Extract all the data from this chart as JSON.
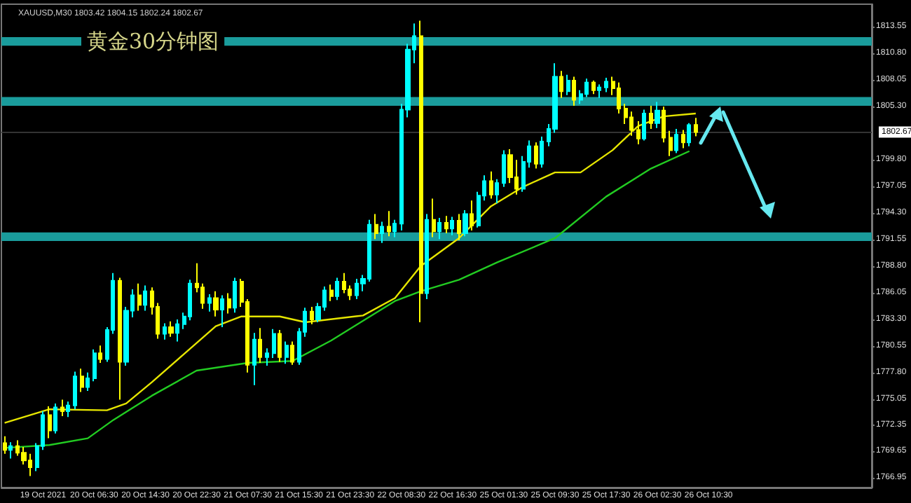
{
  "chart_data": {
    "type": "candlestick",
    "title": "黄金30分钟图",
    "subtitle": "XAUUSD,M30 1803.42 1804.15 1802.24 1802.67",
    "categories": [
      null,
      null,
      null,
      null,
      null,
      null,
      "19 Oct 2021",
      null,
      null,
      null,
      null,
      null,
      null,
      null,
      "20 Oct 06:30",
      null,
      null,
      null,
      null,
      null,
      null,
      null,
      "20 Oct 14:30",
      null,
      null,
      null,
      null,
      null,
      null,
      null,
      "20 Oct 22:30",
      null,
      null,
      null,
      null,
      null,
      null,
      null,
      "21 Oct 07:30",
      null,
      null,
      null,
      null,
      null,
      null,
      null,
      "21 Oct 15:30",
      null,
      null,
      null,
      null,
      null,
      null,
      null,
      "21 Oct 23:30",
      null,
      null,
      null,
      null,
      null,
      null,
      null,
      "22 Oct 08:30",
      null,
      null,
      null,
      null,
      null,
      null,
      null,
      "22 Oct 16:30",
      null,
      null,
      null,
      null,
      null,
      null,
      null,
      "25 Oct 01:30",
      null,
      null,
      null,
      null,
      null,
      null,
      null,
      "25 Oct 09:30",
      null,
      null,
      null,
      null,
      null,
      null,
      null,
      "25 Oct 17:30",
      null,
      null,
      null,
      null,
      null,
      null,
      null,
      "26 Oct 02:30",
      null,
      null,
      null,
      null,
      null,
      null,
      null,
      "26 Oct 10:30",
      null,
      null,
      null,
      null,
      null,
      null,
      null,
      null,
      null,
      null,
      null,
      null,
      null,
      null,
      null,
      null,
      null,
      null,
      null,
      null,
      null,
      null,
      null,
      null,
      null
    ],
    "colors": [
      "#ffff00",
      "#00ffff",
      "#ffff00",
      "#ffff00",
      "#ffff00",
      "#00ffff",
      "#00ffff",
      "#ffff00",
      "#00ffff",
      "#ffff00",
      "#00ffff",
      "#00ffff",
      "#ffff00",
      "#00ffff",
      "#00ffff",
      "#ffff00",
      "#00ffff",
      "#00ffff",
      "#ffff00",
      "#00ffff",
      "#00ffff",
      "#ffff00",
      "#00ffff",
      "#ffff00",
      "#ffff00",
      "#00ffff",
      "#ffff00",
      "#00ffff",
      "#00ffff",
      "#00ffff",
      "#ffff00",
      "#ffff00",
      "#00ffff",
      "#ffff00",
      "#00ffff",
      "#ffff00",
      "#00ffff",
      "#ffff00",
      "#ffff00",
      "#00ffff",
      "#ffff00",
      "#00ffff",
      "#00ffff",
      "#ffff00",
      "#00ffff",
      "#ffff00",
      "#00ffff",
      "#00ffff",
      "#ffff00",
      "#00ffff",
      "#00ffff",
      "#ffff00",
      "#00ffff",
      "#ffff00",
      "#ffff00",
      "#00ffff",
      "#00ffff",
      "#00ffff",
      "#ffff00",
      "#00ffff",
      "#ffff00",
      "#00ffff",
      "#00ffff",
      "#00ffff",
      "#00ffff",
      "#ffff00",
      "#00ffff",
      "#ffff00",
      "#00ffff",
      "#ffff00",
      "#00ffff",
      "#ffff00",
      "#00ffff",
      "#ffff00",
      "#00ffff",
      "#00ffff",
      "#ffff00",
      "#00ffff",
      "#00ffff",
      "#ffff00",
      "#ffff00",
      "#00ffff",
      "#00ffff",
      "#ffff00",
      "#00ffff",
      "#00ffff",
      "#00ffff",
      "#ffff00",
      "#00ffff",
      "#ffff00",
      "#00ffff",
      "#00ffff",
      "#ffff00",
      "#00ffff",
      "#00ffff",
      "#ffff00",
      "#ffff00",
      "#ffff00",
      "#ffff00",
      "#ffff00",
      "#00ffff",
      "#ffff00",
      "#00ffff",
      "#ffff00",
      "#ffff00",
      "#00ffff",
      "#ffff00",
      "#00ffff",
      "#ffff00",
      null,
      null,
      null,
      null,
      null,
      null,
      null,
      null,
      null,
      null,
      null,
      null,
      null,
      null,
      null,
      null,
      null,
      null,
      null,
      null,
      null,
      null,
      null,
      null,
      null,
      null,
      null
    ],
    "ohlc": [
      [
        1770.5,
        1771.2,
        1769.4,
        1769.8
      ],
      [
        1769.8,
        1770.6,
        1768.9,
        1770.2
      ],
      [
        1770.2,
        1770.8,
        1769.2,
        1769.5
      ],
      [
        1769.5,
        1770.1,
        1768.3,
        1768.7
      ],
      [
        1768.7,
        1769.4,
        1767.1,
        1768.0
      ],
      [
        1768.0,
        1770.5,
        1767.6,
        1770.2
      ],
      [
        1770.2,
        1773.8,
        1769.8,
        1773.4
      ],
      [
        1773.4,
        1774.3,
        1771.0,
        1771.8
      ],
      [
        1771.8,
        1774.6,
        1771.5,
        1774.2
      ],
      [
        1774.2,
        1775.0,
        1773.3,
        1773.8
      ],
      [
        1773.8,
        1774.8,
        1773.2,
        1774.4
      ],
      [
        1774.4,
        1777.9,
        1774.0,
        1777.4
      ],
      [
        1777.4,
        1778.2,
        1775.8,
        1776.3
      ],
      [
        1776.3,
        1777.8,
        1775.9,
        1777.2
      ],
      [
        1777.2,
        1780.2,
        1776.9,
        1779.8
      ],
      [
        1779.8,
        1780.6,
        1778.8,
        1779.2
      ],
      [
        1779.2,
        1782.5,
        1778.9,
        1782.2
      ],
      [
        1782.2,
        1788.1,
        1781.8,
        1787.3
      ],
      [
        1787.3,
        1787.6,
        1775.0,
        1778.9
      ],
      [
        1778.9,
        1784.6,
        1778.5,
        1784.2
      ],
      [
        1784.2,
        1786.4,
        1783.5,
        1785.8
      ],
      [
        1785.8,
        1787.0,
        1784.2,
        1784.8
      ],
      [
        1784.8,
        1786.8,
        1784.2,
        1786.2
      ],
      [
        1786.2,
        1786.6,
        1783.8,
        1784.6
      ],
      [
        1784.6,
        1785.0,
        1781.3,
        1781.8
      ],
      [
        1781.8,
        1782.9,
        1781.2,
        1782.5
      ],
      [
        1782.5,
        1783.1,
        1781.5,
        1781.9
      ],
      [
        1781.9,
        1783.3,
        1781.0,
        1782.8
      ],
      [
        1782.8,
        1784.0,
        1782.3,
        1783.6
      ],
      [
        1783.6,
        1787.4,
        1783.2,
        1787.0
      ],
      [
        1787.0,
        1789.1,
        1786.1,
        1786.6
      ],
      [
        1786.6,
        1787.0,
        1784.4,
        1785.0
      ],
      [
        1785.0,
        1785.9,
        1784.1,
        1785.5
      ],
      [
        1785.5,
        1786.2,
        1783.6,
        1784.3
      ],
      [
        1784.3,
        1785.8,
        1782.5,
        1785.4
      ],
      [
        1785.4,
        1786.0,
        1783.9,
        1784.5
      ],
      [
        1784.5,
        1787.6,
        1784.0,
        1787.2
      ],
      [
        1787.2,
        1787.5,
        1784.6,
        1785.1
      ],
      [
        1785.1,
        1785.4,
        1777.8,
        1778.6
      ],
      [
        1778.6,
        1781.9,
        1776.5,
        1781.2
      ],
      [
        1781.2,
        1782.4,
        1778.8,
        1779.4
      ],
      [
        1779.4,
        1780.3,
        1778.5,
        1779.8
      ],
      [
        1779.8,
        1782.3,
        1779.3,
        1781.8
      ],
      [
        1781.8,
        1782.2,
        1778.9,
        1779.4
      ],
      [
        1779.4,
        1781.0,
        1778.7,
        1780.6
      ],
      [
        1780.6,
        1781.0,
        1778.6,
        1778.9
      ],
      [
        1778.9,
        1782.4,
        1778.6,
        1782.0
      ],
      [
        1782.0,
        1784.5,
        1781.5,
        1784.1
      ],
      [
        1784.1,
        1784.6,
        1782.8,
        1783.3
      ],
      [
        1783.3,
        1785.0,
        1783.0,
        1784.6
      ],
      [
        1784.6,
        1786.7,
        1784.2,
        1786.3
      ],
      [
        1786.3,
        1786.9,
        1785.2,
        1785.7
      ],
      [
        1785.7,
        1787.6,
        1785.3,
        1787.2
      ],
      [
        1787.2,
        1788.1,
        1786.0,
        1786.4
      ],
      [
        1786.4,
        1786.8,
        1785.3,
        1785.8
      ],
      [
        1785.8,
        1787.5,
        1785.4,
        1787.0
      ],
      [
        1787.0,
        1787.9,
        1786.2,
        1787.5
      ],
      [
        1787.5,
        1793.6,
        1787.2,
        1793.1
      ],
      [
        1793.1,
        1794.2,
        1791.6,
        1792.2
      ],
      [
        1792.2,
        1793.4,
        1791.2,
        1792.9
      ],
      [
        1792.9,
        1794.5,
        1791.9,
        1792.4
      ],
      [
        1792.4,
        1793.6,
        1791.8,
        1793.2
      ],
      [
        1793.2,
        1805.6,
        1792.5,
        1805.0
      ],
      [
        1805.0,
        1811.8,
        1804.2,
        1811.2
      ],
      [
        1811.2,
        1813.9,
        1809.8,
        1812.6
      ],
      [
        1812.6,
        1814.2,
        1783.0,
        1786.0
      ],
      [
        1786.0,
        1794.2,
        1785.4,
        1793.6
      ],
      [
        1793.6,
        1795.8,
        1791.8,
        1792.4
      ],
      [
        1792.4,
        1793.8,
        1791.6,
        1793.3
      ],
      [
        1793.3,
        1794.0,
        1792.2,
        1792.7
      ],
      [
        1792.7,
        1793.9,
        1792.0,
        1793.5
      ],
      [
        1793.5,
        1794.2,
        1791.5,
        1792.2
      ],
      [
        1792.2,
        1794.6,
        1791.9,
        1794.2
      ],
      [
        1794.2,
        1795.6,
        1792.5,
        1793.0
      ],
      [
        1793.0,
        1796.5,
        1792.8,
        1796.1
      ],
      [
        1796.1,
        1798.2,
        1795.6,
        1797.6
      ],
      [
        1797.6,
        1798.6,
        1795.8,
        1796.2
      ],
      [
        1796.2,
        1797.8,
        1795.3,
        1797.4
      ],
      [
        1797.4,
        1800.8,
        1797.0,
        1800.3
      ],
      [
        1800.3,
        1800.9,
        1797.4,
        1798.0
      ],
      [
        1798.0,
        1799.8,
        1796.2,
        1796.8
      ],
      [
        1796.8,
        1800.2,
        1796.5,
        1799.6
      ],
      [
        1799.6,
        1801.8,
        1799.0,
        1801.2
      ],
      [
        1801.2,
        1801.6,
        1798.9,
        1799.4
      ],
      [
        1799.4,
        1802.2,
        1799.0,
        1801.7
      ],
      [
        1801.7,
        1803.5,
        1801.2,
        1803.0
      ],
      [
        1803.0,
        1809.8,
        1802.6,
        1808.4
      ],
      [
        1808.4,
        1809.0,
        1806.2,
        1806.9
      ],
      [
        1806.9,
        1808.6,
        1806.5,
        1808.0
      ],
      [
        1808.0,
        1808.4,
        1805.4,
        1806.0
      ],
      [
        1806.0,
        1807.0,
        1805.6,
        1806.6
      ],
      [
        1806.6,
        1808.2,
        1806.3,
        1807.8
      ],
      [
        1807.8,
        1808.0,
        1806.6,
        1807.0
      ],
      [
        1807.0,
        1807.6,
        1806.2,
        1807.3
      ],
      [
        1807.3,
        1808.3,
        1806.8,
        1807.9
      ],
      [
        1807.9,
        1808.4,
        1806.5,
        1807.2
      ],
      [
        1807.2,
        1807.8,
        1804.6,
        1805.1
      ],
      [
        1805.1,
        1805.6,
        1803.5,
        1804.2
      ],
      [
        1804.2,
        1804.8,
        1802.3,
        1802.9
      ],
      [
        1802.9,
        1803.8,
        1801.4,
        1802.0
      ],
      [
        1802.0,
        1805.0,
        1801.8,
        1804.6
      ],
      [
        1804.6,
        1805.4,
        1803.0,
        1803.6
      ],
      [
        1803.6,
        1805.8,
        1803.1,
        1804.9
      ],
      [
        1804.9,
        1805.3,
        1801.6,
        1802.1
      ],
      [
        1802.1,
        1802.8,
        1800.2,
        1800.8
      ],
      [
        1800.8,
        1803.0,
        1800.5,
        1802.4
      ],
      [
        1802.4,
        1802.9,
        1801.0,
        1801.6
      ],
      [
        1801.6,
        1803.6,
        1801.2,
        1803.4
      ],
      [
        1803.42,
        1804.15,
        1802.24,
        1802.67
      ],
      null,
      null,
      null,
      null,
      null,
      null,
      null,
      null,
      null,
      null,
      null,
      null,
      null,
      null,
      null,
      null,
      null,
      null,
      null,
      null,
      null,
      null,
      null,
      null,
      null,
      null,
      null
    ],
    "series": [
      {
        "type": "line",
        "color": "#e6e600",
        "values": [
          1772.6,
          null,
          null,
          null,
          null,
          null,
          null,
          1774.0,
          null,
          null,
          null,
          null,
          null,
          null,
          null,
          null,
          1773.9,
          null,
          null,
          1774.6,
          null,
          null,
          null,
          1776.8,
          null,
          null,
          null,
          null,
          1779.7,
          null,
          null,
          null,
          null,
          1782.6,
          null,
          null,
          null,
          1783.6,
          null,
          null,
          null,
          null,
          null,
          1783.6,
          null,
          null,
          null,
          1783.0,
          null,
          null,
          null,
          null,
          null,
          null,
          null,
          null,
          1783.7,
          null,
          null,
          null,
          null,
          1785.5,
          null,
          null,
          null,
          1788.8,
          null,
          null,
          null,
          null,
          null,
          1791.7,
          null,
          null,
          null,
          null,
          1795.0,
          null,
          null,
          null,
          null,
          1797.0,
          null,
          null,
          null,
          null,
          1798.5,
          null,
          null,
          null,
          1798.5,
          null,
          null,
          null,
          null,
          1800.8,
          null,
          null,
          null,
          1803.3,
          null,
          null,
          null,
          1804.3,
          null,
          null,
          null,
          null,
          1804.6,
          null,
          null,
          null,
          null,
          null,
          null,
          null,
          null,
          null,
          null,
          null,
          null,
          null,
          null,
          null,
          null,
          null,
          null,
          null,
          null,
          null,
          null,
          null,
          null,
          null,
          null,
          null
        ]
      },
      {
        "type": "line",
        "color": "#22cc22",
        "values": [
          1770.0,
          null,
          null,
          null,
          null,
          null,
          null,
          1770.3,
          null,
          null,
          null,
          null,
          null,
          1771.0,
          null,
          null,
          null,
          1772.9,
          null,
          null,
          null,
          null,
          null,
          1775.4,
          null,
          null,
          null,
          null,
          null,
          null,
          1778.0,
          null,
          null,
          null,
          null,
          null,
          null,
          null,
          1778.8,
          null,
          null,
          null,
          null,
          null,
          null,
          1779.0,
          null,
          null,
          null,
          null,
          null,
          1781.1,
          null,
          null,
          null,
          null,
          null,
          null,
          null,
          null,
          null,
          1785.2,
          null,
          null,
          null,
          1786.2,
          null,
          null,
          null,
          null,
          null,
          1787.4,
          null,
          null,
          null,
          null,
          null,
          1789.2,
          null,
          null,
          null,
          null,
          null,
          null,
          null,
          null,
          1791.7,
          null,
          null,
          null,
          null,
          null,
          null,
          null,
          1796.0,
          null,
          null,
          null,
          null,
          null,
          null,
          1798.9,
          null,
          null,
          null,
          null,
          null,
          1800.7,
          null,
          null,
          null,
          null,
          null,
          null,
          null,
          null,
          null,
          null,
          null,
          null,
          null,
          null,
          null,
          null,
          null,
          null,
          null,
          null,
          null,
          null,
          null,
          null,
          null,
          null,
          null,
          null
        ]
      }
    ],
    "ylim": [
      1765.9,
      1815.9
    ],
    "yticks": [
      1766.95,
      1769.65,
      1772.35,
      1775.05,
      {
        "value": 1777.8,
        "label": "1777.80"
      },
      1780.55,
      {
        "value": 1783.3,
        "label": "1783.30"
      },
      1786.05,
      {
        "value": 1788.8,
        "label": "1788.80"
      },
      1791.55,
      {
        "value": 1794.3,
        "label": "1794.30"
      },
      1797.05,
      {
        "value": 1799.8,
        "label": "1799.80"
      },
      {
        "value": 1805.3,
        "label": "1805.30"
      },
      1808.05,
      {
        "value": 1810.8,
        "label": "1810.80"
      },
      1813.55
    ],
    "ref_lines": [
      {
        "axis": "y",
        "value": 1802.67,
        "label": "1802.67",
        "color": "#333333"
      }
    ],
    "bands": [
      {
        "axis": "y",
        "from": 1811.6,
        "to": 1812.5,
        "color": "#1a9c9c"
      },
      {
        "axis": "y",
        "from": 1805.4,
        "to": 1806.3,
        "color": "#1a9c9c"
      },
      {
        "axis": "y",
        "from": 1791.4,
        "to": 1792.3,
        "color": "#1a9c9c"
      }
    ],
    "grid": false
  }
}
